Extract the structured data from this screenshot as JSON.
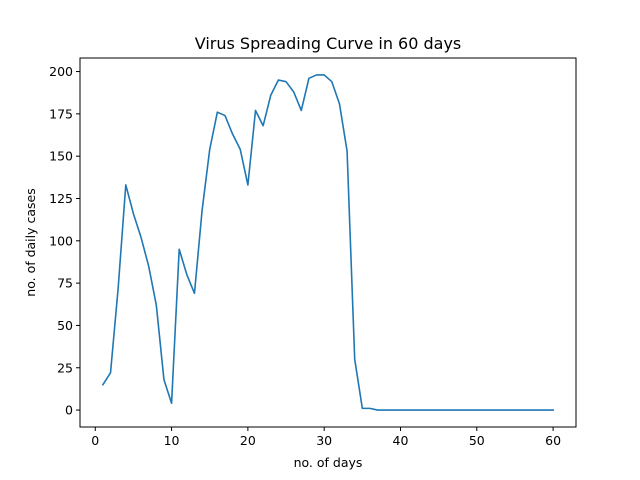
{
  "chart_data": {
    "type": "line",
    "title": "Virus Spreading Curve in 60 days",
    "xlabel": "no. of days",
    "ylabel": "no. of daily cases",
    "xlim": [
      -2,
      63
    ],
    "ylim": [
      -10,
      208
    ],
    "xticks": [
      0,
      10,
      20,
      30,
      40,
      50,
      60
    ],
    "yticks": [
      0,
      25,
      50,
      75,
      100,
      125,
      150,
      175,
      200
    ],
    "grid": false,
    "series": [
      {
        "color": "#1f77b4",
        "x": [
          1,
          2,
          3,
          4,
          5,
          6,
          7,
          8,
          9,
          10,
          11,
          12,
          13,
          14,
          15,
          16,
          17,
          18,
          19,
          20,
          21,
          22,
          23,
          24,
          25,
          26,
          27,
          28,
          29,
          30,
          31,
          32,
          33,
          34,
          35,
          36,
          37,
          38,
          39,
          40,
          41,
          42,
          43,
          44,
          45,
          46,
          47,
          48,
          49,
          50,
          51,
          52,
          53,
          54,
          55,
          56,
          57,
          58,
          59,
          60
        ],
        "y": [
          15,
          22,
          72,
          133,
          116,
          102,
          85,
          62,
          18,
          4,
          95,
          80,
          69,
          118,
          154,
          176,
          174,
          163,
          154,
          133,
          177,
          168,
          186,
          195,
          194,
          188,
          177,
          196,
          198,
          198,
          194,
          181,
          153,
          30,
          1,
          1,
          0,
          0,
          0,
          0,
          0,
          0,
          0,
          0,
          0,
          0,
          0,
          0,
          0,
          0,
          0,
          0,
          0,
          0,
          0,
          0,
          0,
          0,
          0,
          0
        ]
      }
    ]
  }
}
